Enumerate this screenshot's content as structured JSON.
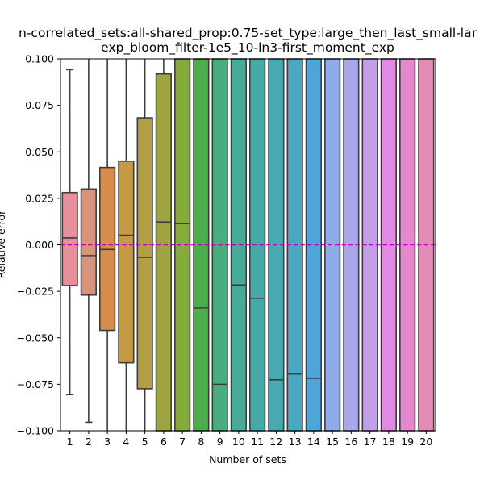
{
  "chart_data": {
    "type": "box",
    "title_line1": "n-correlated_sets:all-shared_prop:0.75-set_type:large_then_last_small-lar",
    "title_line2": "exp_bloom_filter-1e5_10-ln3-first_moment_exp",
    "xlabel": "Number of sets",
    "ylabel": "Relative error",
    "ylim": [
      -0.1,
      0.1
    ],
    "yticks": [
      "0.100",
      "0.075",
      "0.050",
      "0.025",
      "0.000",
      "−0.025",
      "−0.050",
      "−0.075",
      "−0.100"
    ],
    "categories": [
      "1",
      "2",
      "3",
      "4",
      "5",
      "6",
      "7",
      "8",
      "9",
      "10",
      "11",
      "12",
      "13",
      "14",
      "15",
      "16",
      "17",
      "18",
      "19",
      "20"
    ],
    "reference_line": {
      "y": 0.0,
      "color": "#bf00bf",
      "style": "dashed"
    },
    "boxes": [
      {
        "x": "1",
        "q1": -0.0219,
        "median": 0.0037,
        "q3": 0.0281,
        "whisker_low": -0.0806,
        "whisker_high": 0.0942,
        "color": "#e8909a"
      },
      {
        "x": "2",
        "q1": -0.027,
        "median": -0.0058,
        "q3": 0.03,
        "whisker_low": -0.0954,
        "whisker_high": 0.1,
        "color": "#d9937a"
      },
      {
        "x": "3",
        "q1": -0.046,
        "median": -0.0025,
        "q3": 0.0416,
        "whisker_low": -0.1,
        "whisker_high": 0.1,
        "color": "#d98d4a"
      },
      {
        "x": "4",
        "q1": -0.0634,
        "median": 0.0052,
        "q3": 0.045,
        "whisker_low": -0.1,
        "whisker_high": 0.1,
        "color": "#c59a45"
      },
      {
        "x": "5",
        "q1": -0.0774,
        "median": -0.0067,
        "q3": 0.0683,
        "whisker_low": -0.1,
        "whisker_high": 0.1,
        "color": "#b39e41"
      },
      {
        "x": "6",
        "q1": -0.1,
        "median": 0.0123,
        "q3": 0.0919,
        "whisker_low": -0.1,
        "whisker_high": 0.1,
        "color": "#9ea440"
      },
      {
        "x": "7",
        "q1": -0.1,
        "median": 0.0114,
        "q3": 0.1,
        "whisker_low": -0.1,
        "whisker_high": 0.1,
        "color": "#85ab3f"
      },
      {
        "x": "8",
        "q1": -0.1,
        "median": -0.034,
        "q3": 0.1,
        "whisker_low": -0.1,
        "whisker_high": 0.1,
        "color": "#4aaf4a"
      },
      {
        "x": "9",
        "q1": -0.1,
        "median": -0.075,
        "q3": 0.1,
        "whisker_low": -0.1,
        "whisker_high": 0.1,
        "color": "#49ad7e"
      },
      {
        "x": "10",
        "q1": -0.1,
        "median": -0.0216,
        "q3": 0.1,
        "whisker_low": -0.1,
        "whisker_high": 0.1,
        "color": "#47ab97"
      },
      {
        "x": "11",
        "q1": -0.1,
        "median": -0.0288,
        "q3": 0.1,
        "whisker_low": -0.1,
        "whisker_high": 0.1,
        "color": "#48aaa6"
      },
      {
        "x": "12",
        "q1": -0.1,
        "median": -0.0726,
        "q3": 0.1,
        "whisker_low": -0.1,
        "whisker_high": 0.1,
        "color": "#49a9b2"
      },
      {
        "x": "13",
        "q1": -0.1,
        "median": -0.0695,
        "q3": 0.1,
        "whisker_low": -0.1,
        "whisker_high": 0.1,
        "color": "#4aa8c2"
      },
      {
        "x": "14",
        "q1": -0.1,
        "median": -0.0718,
        "q3": 0.1,
        "whisker_low": -0.1,
        "whisker_high": 0.1,
        "color": "#4da6d8"
      },
      {
        "x": "15",
        "q1": -0.1,
        "median": null,
        "q3": 0.1,
        "whisker_low": -0.1,
        "whisker_high": 0.1,
        "color": "#8eaae8"
      },
      {
        "x": "16",
        "q1": -0.1,
        "median": null,
        "q3": 0.1,
        "whisker_low": -0.1,
        "whisker_high": 0.1,
        "color": "#a8a6ec"
      },
      {
        "x": "17",
        "q1": -0.1,
        "median": null,
        "q3": 0.1,
        "whisker_low": -0.1,
        "whisker_high": 0.1,
        "color": "#c29fe8"
      },
      {
        "x": "18",
        "q1": -0.1,
        "median": null,
        "q3": 0.1,
        "whisker_low": -0.1,
        "whisker_high": 0.1,
        "color": "#e08ae6"
      },
      {
        "x": "19",
        "q1": -0.1,
        "median": null,
        "q3": 0.1,
        "whisker_low": -0.1,
        "whisker_high": 0.1,
        "color": "#e688cf"
      },
      {
        "x": "20",
        "q1": -0.1,
        "median": null,
        "q3": 0.1,
        "whisker_low": -0.1,
        "whisker_high": 0.1,
        "color": "#e48db4"
      }
    ]
  }
}
